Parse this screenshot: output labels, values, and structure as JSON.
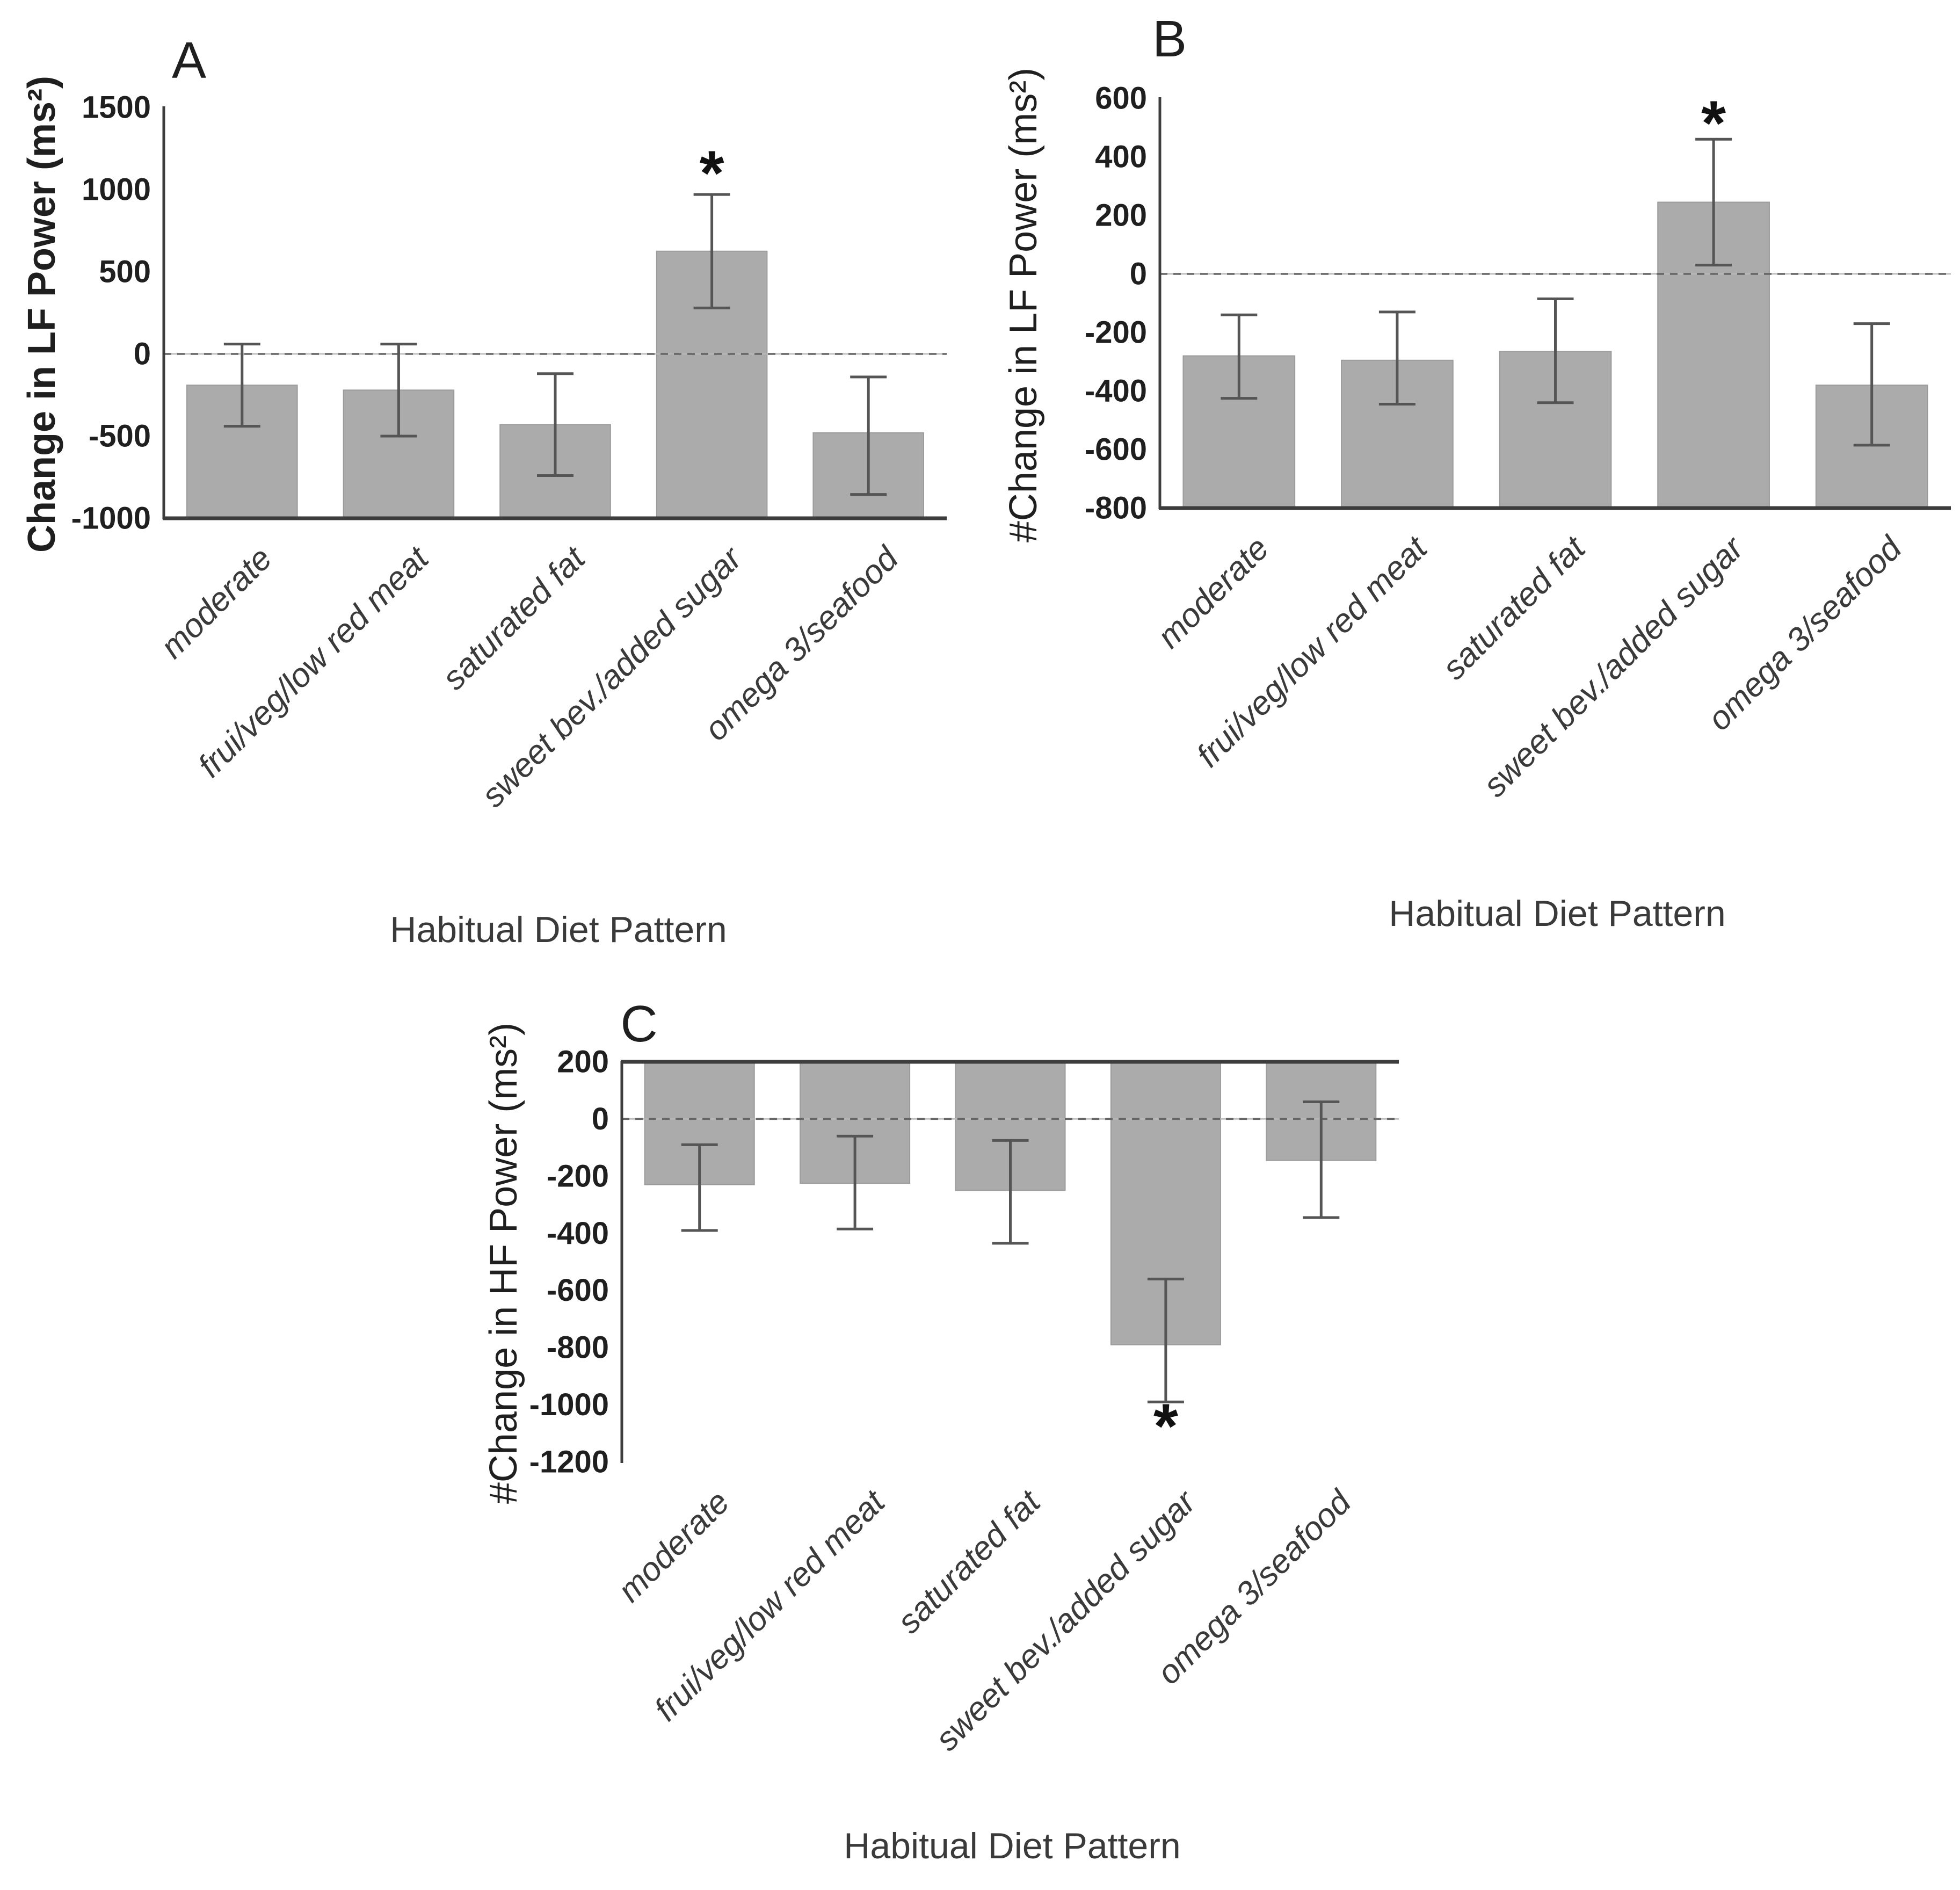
{
  "figure_type": "three-panel scientific bar figure",
  "colors": {
    "background": "#ffffff",
    "bar_fill": "#ababab",
    "bar_edge": "#9b9b9b",
    "error_bar": "#555555",
    "axis_line": "#3d3d3d",
    "zero_dash": "#666666",
    "zero_solid": "#b8b8b8",
    "tick_text": "#1f1f1f",
    "category_text": "#3a3a3a"
  },
  "shared": {
    "x_axis_title": "Habitual Diet Pattern",
    "categories": [
      "moderate",
      "frui/veg/low red meat",
      "saturated fat",
      "sweet bev./added sugar",
      "omega 3/seafood"
    ],
    "significance_marker": "*"
  },
  "chart_data": [
    {
      "type": "bar",
      "panel_letter": "A",
      "ylabel": "Change in LF Power (ms²)",
      "ylabel_bold": true,
      "xlabel": "Habitual Diet Pattern",
      "ylim": [
        -1000,
        1500
      ],
      "yticks": [
        1500,
        1000,
        500,
        0,
        -500,
        -1000
      ],
      "grid": false,
      "zero_line": "dashed",
      "bars_drawn_from": "axis_min",
      "categories": [
        "moderate",
        "frui/veg/low red meat",
        "saturated fat",
        "sweet bev./added sugar",
        "omega 3/seafood"
      ],
      "values": [
        -190,
        -220,
        -430,
        625,
        -480
      ],
      "error_high": [
        60,
        60,
        -120,
        970,
        -140
      ],
      "error_low": [
        -440,
        -500,
        -740,
        280,
        -855
      ],
      "significant": [
        false,
        false,
        false,
        true,
        false
      ],
      "sig_marker_y": [
        null,
        null,
        null,
        1100,
        null
      ]
    },
    {
      "type": "bar",
      "panel_letter": "B",
      "ylabel": "#Change in LF Power (ms²)",
      "ylabel_bold": false,
      "xlabel": "Habitual Diet Pattern",
      "ylim": [
        -800,
        600
      ],
      "yticks": [
        600,
        400,
        200,
        0,
        -200,
        -400,
        -600,
        -800
      ],
      "grid": false,
      "zero_line": "dashed",
      "bars_drawn_from": "axis_min",
      "categories": [
        "moderate",
        "frui/veg/low red meat",
        "saturated fat",
        "sweet bev./added sugar",
        "omega 3/seafood"
      ],
      "values": [
        -280,
        -295,
        -265,
        245,
        -380
      ],
      "error_high": [
        -140,
        -130,
        -85,
        460,
        -170
      ],
      "error_low": [
        -425,
        -445,
        -440,
        30,
        -585
      ],
      "significant": [
        false,
        false,
        false,
        true,
        false
      ],
      "sig_marker_y": [
        null,
        null,
        null,
        515,
        null
      ]
    },
    {
      "type": "bar",
      "panel_letter": "C",
      "ylabel": "#Change in HF Power (ms²)",
      "ylabel_bold": false,
      "xlabel": "Habitual Diet Pattern",
      "ylim": [
        -1200,
        200
      ],
      "yticks": [
        200,
        0,
        -200,
        -400,
        -600,
        -800,
        -1000,
        -1200
      ],
      "grid": false,
      "zero_line": "dashed",
      "bars_drawn_from": "axis_max",
      "categories": [
        "moderate",
        "frui/veg/low red meat",
        "saturated fat",
        "sweet bev./added sugar",
        "omega 3/seafood"
      ],
      "values": [
        -230,
        -225,
        -250,
        -790,
        -145
      ],
      "error_high": [
        -90,
        -60,
        -75,
        -560,
        60
      ],
      "error_low": [
        -390,
        -385,
        -435,
        -990,
        -345
      ],
      "significant": [
        false,
        false,
        false,
        true,
        false
      ],
      "sig_marker_y": [
        null,
        null,
        null,
        -1075,
        null
      ]
    }
  ]
}
